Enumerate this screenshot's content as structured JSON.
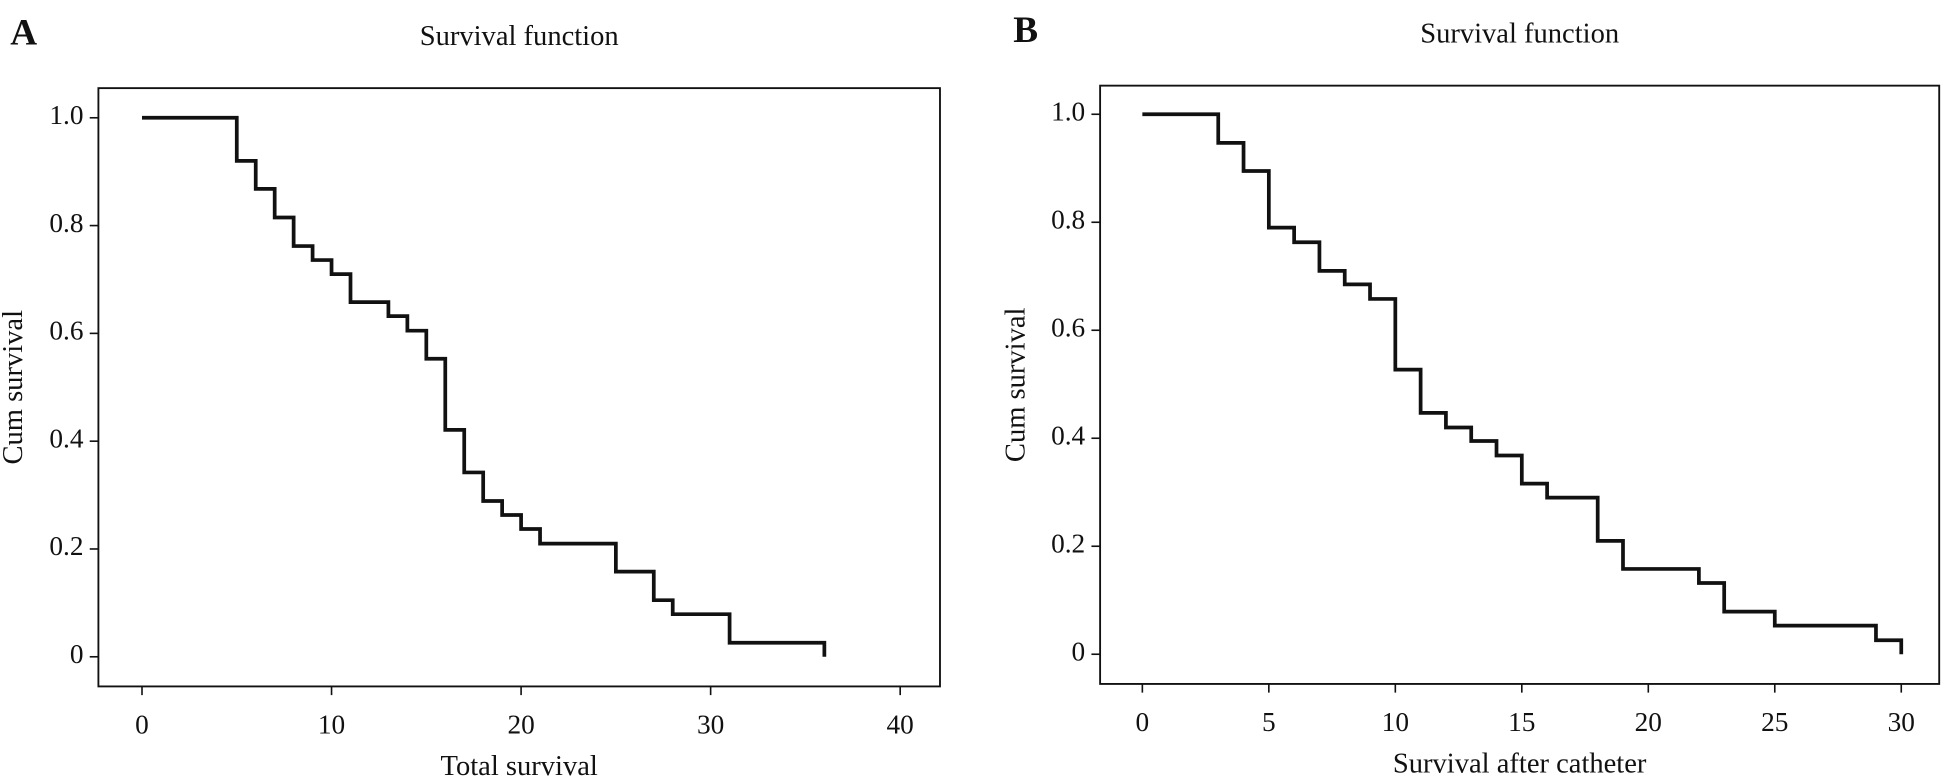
{
  "chart_data": [
    {
      "type": "step",
      "panel": "A",
      "title": "Survival function",
      "xlabel": "Total survival",
      "ylabel": "Cum survival",
      "color": "#111111",
      "x": [
        0,
        5,
        6,
        7,
        8,
        9,
        10,
        11,
        13,
        14,
        15,
        16,
        17,
        18,
        19,
        20,
        21,
        25,
        27,
        28,
        31,
        36
      ],
      "values": [
        1.0,
        0.92,
        0.868,
        0.815,
        0.762,
        0.736,
        0.71,
        0.658,
        0.632,
        0.605,
        0.553,
        0.421,
        0.342,
        0.289,
        0.263,
        0.237,
        0.21,
        0.158,
        0.105,
        0.079,
        0.026,
        0.0
      ],
      "xlim": [
        -2.3,
        42.1
      ],
      "ylim": [
        -0.055,
        1.055
      ],
      "xticks": [
        0,
        10,
        20,
        30,
        40
      ],
      "yticks": [
        0,
        0.2,
        0.4,
        0.6,
        0.8,
        {
          "value": 1,
          "label": "1.0"
        }
      ]
    },
    {
      "type": "step",
      "panel": "B",
      "title": "Survival function",
      "xlabel": "Survival after catheter",
      "ylabel": "Cum survival",
      "color": "#111111",
      "x": [
        0,
        3,
        4,
        5,
        6,
        7,
        8,
        9,
        10,
        11,
        12,
        13,
        14,
        15,
        16,
        18,
        19,
        22,
        23,
        25,
        29,
        30
      ],
      "values": [
        1.0,
        0.947,
        0.895,
        0.79,
        0.763,
        0.71,
        0.685,
        0.658,
        0.527,
        0.447,
        0.42,
        0.395,
        0.368,
        0.316,
        0.29,
        0.21,
        0.158,
        0.132,
        0.079,
        0.053,
        0.026,
        0.0
      ],
      "xlim": [
        -1.67,
        31.5
      ],
      "ylim": [
        -0.055,
        1.053
      ],
      "xticks": [
        0,
        5,
        10,
        15,
        20,
        25,
        30
      ],
      "yticks": [
        0,
        0.2,
        0.4,
        0.6,
        0.8,
        {
          "value": 1,
          "label": "1.0"
        }
      ]
    }
  ]
}
